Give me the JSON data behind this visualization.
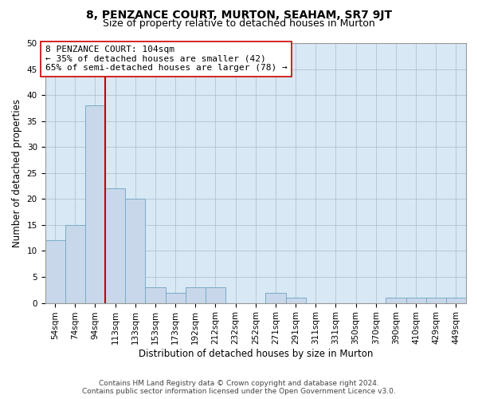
{
  "title": "8, PENZANCE COURT, MURTON, SEAHAM, SR7 9JT",
  "subtitle": "Size of property relative to detached houses in Murton",
  "xlabel": "Distribution of detached houses by size in Murton",
  "ylabel": "Number of detached properties",
  "categories": [
    "54sqm",
    "74sqm",
    "94sqm",
    "113sqm",
    "133sqm",
    "153sqm",
    "173sqm",
    "192sqm",
    "212sqm",
    "232sqm",
    "252sqm",
    "271sqm",
    "291sqm",
    "311sqm",
    "331sqm",
    "350sqm",
    "370sqm",
    "390sqm",
    "410sqm",
    "429sqm",
    "449sqm"
  ],
  "values": [
    12,
    15,
    38,
    22,
    20,
    3,
    2,
    3,
    3,
    0,
    0,
    2,
    1,
    0,
    0,
    0,
    0,
    1,
    1,
    1,
    1
  ],
  "bar_color": "#c8d8ea",
  "bar_edgecolor": "#7aaac8",
  "vline_x_index": 3,
  "vline_color": "#cc0000",
  "annotation_text": "8 PENZANCE COURT: 104sqm\n← 35% of detached houses are smaller (42)\n65% of semi-detached houses are larger (78) →",
  "annotation_box_color": "#ffffff",
  "annotation_box_edgecolor": "#cc0000",
  "ylim": [
    0,
    50
  ],
  "yticks": [
    0,
    5,
    10,
    15,
    20,
    25,
    30,
    35,
    40,
    45,
    50
  ],
  "grid_color": "#aabccc",
  "bg_color": "#d8e8f4",
  "footer": "Contains HM Land Registry data © Crown copyright and database right 2024.\nContains public sector information licensed under the Open Government Licence v3.0.",
  "title_fontsize": 10,
  "subtitle_fontsize": 9,
  "xlabel_fontsize": 8.5,
  "ylabel_fontsize": 8.5,
  "annotation_fontsize": 8,
  "tick_fontsize": 7.5,
  "footer_fontsize": 6.5
}
